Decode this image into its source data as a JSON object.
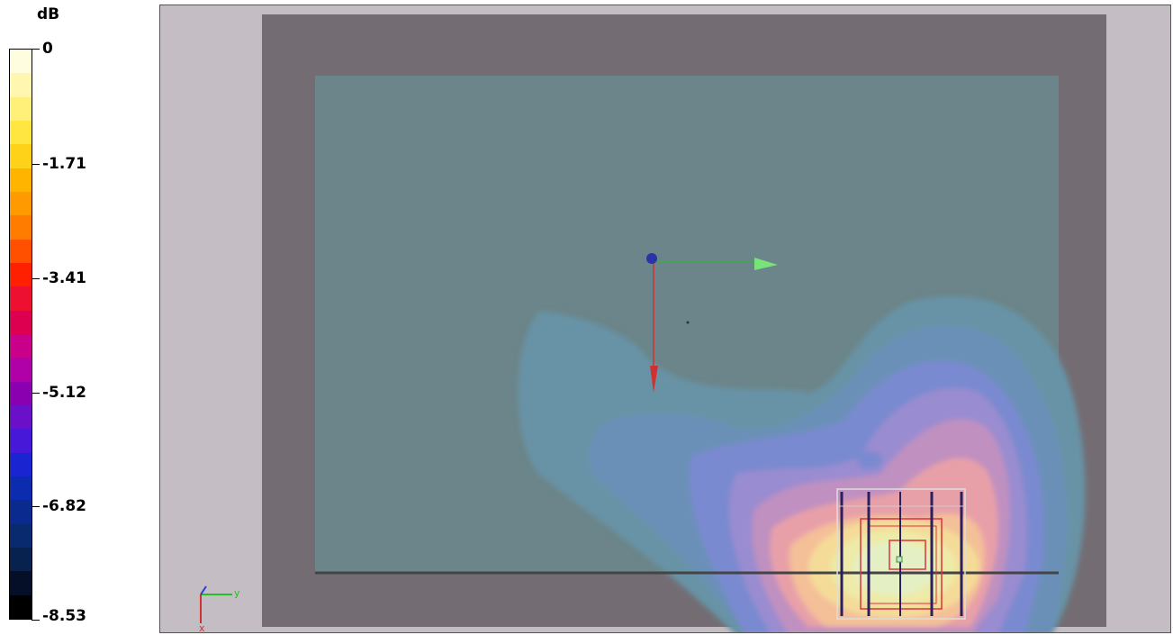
{
  "legend": {
    "unit": "dB",
    "ticks": [
      "0",
      "-1.71",
      "-3.41",
      "-5.12",
      "-6.82",
      "-8.53"
    ],
    "bands": [
      "#fffde0",
      "#fff7b0",
      "#fff07a",
      "#ffe640",
      "#ffd21a",
      "#ffb400",
      "#ff9a00",
      "#ff7c00",
      "#ff5000",
      "#ff2000",
      "#ee1030",
      "#dd0050",
      "#c8008a",
      "#b000a8",
      "#8a00b0",
      "#6a10c8",
      "#4818d8",
      "#1a24d0",
      "#0c2cb0",
      "#0a2a90",
      "#0a2a70",
      "#082250",
      "#050f28",
      "#000000"
    ],
    "colors": {
      "frame": "#736d73",
      "plane": "#6b858a",
      "background": "#c4bec4"
    }
  },
  "axes_gizmo": {
    "y_label": "y",
    "x_label": "x"
  }
}
